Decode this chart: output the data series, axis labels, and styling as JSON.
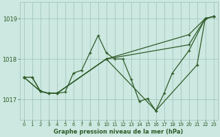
{
  "title": "Graphe pression niveau de la mer (hPa)",
  "bg_color": "#cce8e0",
  "grid_color": "#9bbfb8",
  "line_color": "#2d5a27",
  "xlim": [
    -0.5,
    23.5
  ],
  "ylim": [
    1016.5,
    1019.4
  ],
  "yticks": [
    1017,
    1018,
    1019
  ],
  "xticks": [
    0,
    1,
    2,
    3,
    4,
    5,
    6,
    7,
    8,
    9,
    10,
    11,
    12,
    13,
    14,
    15,
    16,
    17,
    18,
    19,
    20,
    21,
    22,
    23
  ],
  "s0x": [
    0,
    1,
    2,
    3,
    4,
    5,
    6,
    7,
    8,
    9,
    10,
    11,
    12,
    13,
    14,
    15,
    16,
    17,
    18,
    20,
    22,
    23
  ],
  "s0y": [
    1017.55,
    1017.55,
    1017.2,
    1017.15,
    1017.15,
    1017.18,
    1017.65,
    1017.72,
    1018.15,
    1018.58,
    1018.15,
    1018.0,
    1018.0,
    1017.5,
    1016.95,
    1017.02,
    1016.72,
    1017.15,
    1017.65,
    1018.2,
    1019.0,
    1019.05
  ],
  "s1x": [
    0,
    1,
    2,
    3,
    4,
    10,
    20,
    22,
    23
  ],
  "s1y": [
    1017.55,
    1017.55,
    1017.2,
    1017.15,
    1017.15,
    1018.0,
    1018.35,
    1019.0,
    1019.05
  ],
  "s2x": [
    0,
    2,
    3,
    4,
    10,
    20,
    22,
    23
  ],
  "s2y": [
    1017.55,
    1017.2,
    1017.15,
    1017.15,
    1018.0,
    1018.6,
    1019.0,
    1019.05
  ],
  "s3x": [
    0,
    2,
    3,
    4,
    10,
    16,
    21,
    22,
    23
  ],
  "s3y": [
    1017.55,
    1017.2,
    1017.15,
    1017.15,
    1018.0,
    1016.72,
    1017.85,
    1019.0,
    1019.05
  ],
  "lw": 0.9,
  "ms": 3.5,
  "mew": 0.9
}
